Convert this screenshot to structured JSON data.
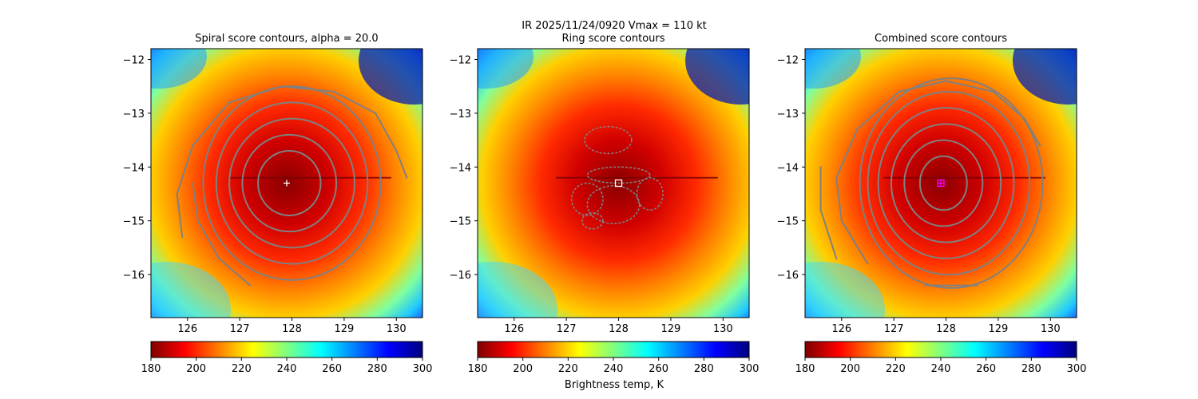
{
  "figure": {
    "suptitle_line1": "IR  2025/11/24/0920    Vmax = 110 kt",
    "colorbar_label": "Brightness temp, K"
  },
  "colormap": {
    "name": "jet_r",
    "stops": [
      "#7f0000",
      "#ff0000",
      "#ff7f00",
      "#ffff00",
      "#7fff7f",
      "#00ffff",
      "#007fff",
      "#0000ff",
      "#00007f"
    ]
  },
  "chart_data": [
    {
      "type": "heatmap",
      "title": "Spiral score contours, alpha = 20.0",
      "xlim": [
        125.3,
        130.5
      ],
      "ylim": [
        -16.8,
        -11.8
      ],
      "xticks": [
        126,
        127,
        128,
        129,
        130
      ],
      "yticks": [
        -12,
        -13,
        -14,
        -15,
        -16
      ],
      "clim": [
        180,
        300
      ],
      "colorbar_ticks": [
        180,
        200,
        220,
        240,
        260,
        280,
        300
      ],
      "center_marker": {
        "type": "plus",
        "x": 127.9,
        "y": -14.3,
        "color": "#ffffff"
      },
      "contours": {
        "color": "#808080",
        "rings": [
          {
            "cx": 127.95,
            "cy": -14.3,
            "rx": 0.6,
            "ry": 0.6
          },
          {
            "cx": 127.95,
            "cy": -14.3,
            "rx": 0.9,
            "ry": 0.9
          },
          {
            "cx": 128.0,
            "cy": -14.3,
            "rx": 1.2,
            "ry": 1.2
          },
          {
            "cx": 128.0,
            "cy": -14.3,
            "rx": 1.45,
            "ry": 1.5
          },
          {
            "cx": 128.0,
            "cy": -14.3,
            "rx": 1.7,
            "ry": 1.8
          }
        ],
        "arcs": [
          [
            [
              125.9,
              -15.3
            ],
            [
              125.8,
              -14.5
            ],
            [
              126.1,
              -13.6
            ],
            [
              126.8,
              -12.8
            ],
            [
              127.8,
              -12.5
            ],
            [
              128.8,
              -12.6
            ],
            [
              129.6,
              -13.0
            ],
            [
              130.0,
              -13.7
            ],
            [
              130.2,
              -14.2
            ]
          ],
          [
            [
              127.2,
              -16.2
            ],
            [
              126.6,
              -15.7
            ],
            [
              126.2,
              -15.0
            ],
            [
              126.1,
              -14.3
            ]
          ]
        ]
      }
    },
    {
      "type": "heatmap",
      "title": "Ring score contours",
      "xlim": [
        125.3,
        130.5
      ],
      "ylim": [
        -16.8,
        -11.8
      ],
      "xticks": [
        126,
        127,
        128,
        129,
        130
      ],
      "yticks": [
        -12,
        -13,
        -14,
        -15,
        -16
      ],
      "clim": [
        180,
        300
      ],
      "colorbar_ticks": [
        180,
        200,
        220,
        240,
        260,
        280,
        300
      ],
      "center_marker": {
        "type": "square",
        "x": 128.0,
        "y": -14.3,
        "color": "#ffffff"
      },
      "contours": {
        "color": "#808080",
        "blobs": [
          {
            "cx": 127.8,
            "cy": -13.5,
            "rx": 0.45,
            "ry": 0.25
          },
          {
            "cx": 128.0,
            "cy": -14.15,
            "rx": 0.6,
            "ry": 0.15
          },
          {
            "cx": 127.4,
            "cy": -14.6,
            "rx": 0.3,
            "ry": 0.3
          },
          {
            "cx": 127.9,
            "cy": -14.7,
            "rx": 0.5,
            "ry": 0.35
          },
          {
            "cx": 128.6,
            "cy": -14.5,
            "rx": 0.25,
            "ry": 0.3
          },
          {
            "cx": 127.5,
            "cy": -15.0,
            "rx": 0.2,
            "ry": 0.15
          }
        ]
      }
    },
    {
      "type": "heatmap",
      "title": "Combined score contours",
      "xlim": [
        125.3,
        130.5
      ],
      "ylim": [
        -16.8,
        -11.8
      ],
      "xticks": [
        126,
        127,
        128,
        129,
        130
      ],
      "yticks": [
        -12,
        -13,
        -14,
        -15,
        -16
      ],
      "clim": [
        180,
        300
      ],
      "colorbar_ticks": [
        180,
        200,
        220,
        240,
        260,
        280,
        300
      ],
      "center_marker": {
        "type": "plus-square",
        "x": 127.9,
        "y": -14.3,
        "color": "#ff00ff"
      },
      "contours": {
        "color": "#808080",
        "rings": [
          {
            "cx": 127.95,
            "cy": -14.3,
            "rx": 0.45,
            "ry": 0.5
          },
          {
            "cx": 127.95,
            "cy": -14.3,
            "rx": 0.75,
            "ry": 0.8
          },
          {
            "cx": 128.0,
            "cy": -14.3,
            "rx": 1.05,
            "ry": 1.1
          },
          {
            "cx": 128.0,
            "cy": -14.3,
            "rx": 1.3,
            "ry": 1.4
          },
          {
            "cx": 128.05,
            "cy": -14.3,
            "rx": 1.55,
            "ry": 1.7
          },
          {
            "cx": 128.1,
            "cy": -14.3,
            "rx": 1.75,
            "ry": 1.95
          }
        ],
        "arcs": [
          [
            [
              126.5,
              -15.8
            ],
            [
              126.0,
              -15.0
            ],
            [
              125.9,
              -14.2
            ],
            [
              126.3,
              -13.3
            ],
            [
              127.1,
              -12.6
            ],
            [
              128.0,
              -12.4
            ],
            [
              128.9,
              -12.6
            ],
            [
              129.5,
              -13.1
            ],
            [
              129.8,
              -13.6
            ]
          ],
          [
            [
              125.9,
              -15.7
            ],
            [
              125.6,
              -14.8
            ],
            [
              125.6,
              -14.0
            ]
          ],
          [
            [
              127.6,
              -16.2
            ],
            [
              128.6,
              -16.2
            ]
          ]
        ]
      }
    }
  ]
}
